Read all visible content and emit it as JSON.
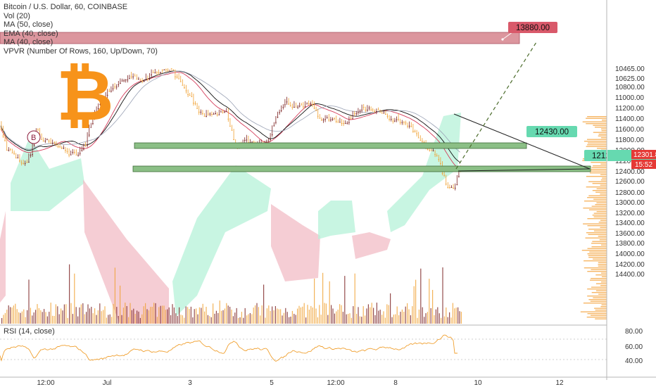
{
  "legend": {
    "title": "Bitcoin / U.S. Dollar, 60, COINBASE",
    "lines": [
      "Vol (20)",
      "MA (50, close)",
      "EMA (40, close)",
      "MA (40, close)",
      "VPVR (Number Of Rows, 160, Up/Down, 70)"
    ]
  },
  "rsi_label": "RSI (14, close)",
  "marker_letter": "B",
  "logo_glyph": "₿",
  "colors": {
    "up": "#f0a030",
    "down": "#7a1f1f",
    "green_zone": "#b6f2d8",
    "red_zone": "#f2bcc6",
    "zone_box_green": "#7fb07a",
    "zone_box_red": "#d98b94",
    "rsi": "#f0a030",
    "price_tag": "#e53935",
    "bitcoin": "#f7931a"
  },
  "chart_data": {
    "type": "candlestick",
    "yaxis": {
      "ticks": [
        10465,
        10625,
        10800,
        11000,
        11200,
        11400,
        11600,
        11800,
        12000,
        12200,
        12400,
        12600,
        12800,
        13000,
        13200,
        13400,
        13600,
        13800,
        14000,
        14200,
        14400
      ]
    },
    "ytick_labels": [
      "10465.00",
      "10625.00",
      "10800.00",
      "11000.00",
      "11200.00",
      "11400.00",
      "11600.00",
      "11800.00",
      "12000.00",
      "12200.00",
      "12400.00",
      "12600.00",
      "12800.00",
      "13000.00",
      "13200.00",
      "13400.00",
      "13600.00",
      "13800.00",
      "14000.00",
      "14200.00",
      "14400.00"
    ],
    "rsi_ticks": [
      "80.00",
      "60.00",
      "40.00"
    ],
    "xaxis": {
      "labels": [
        "12:00",
        "Jul",
        "3",
        "5",
        "12:00",
        "8",
        "10",
        "12"
      ]
    },
    "levels": [
      {
        "label": "13880.00",
        "price": 13880
      },
      {
        "label": "12430.00",
        "price": 12430
      },
      {
        "label": "12125.00",
        "price": 12125
      }
    ],
    "current_price": {
      "value": "12301.81",
      "time_left": "15:52"
    }
  }
}
